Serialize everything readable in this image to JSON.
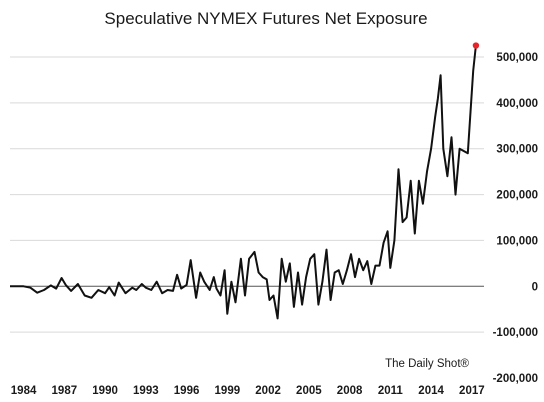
{
  "chart_data": {
    "type": "line",
    "title": "Speculative NYMEX Futures Net Exposure",
    "xlabel": "",
    "ylabel": "",
    "ylim": [
      -200000,
      550000
    ],
    "xlim": [
      1983.0,
      2017.6
    ],
    "grid": true,
    "legend": "none",
    "credit": "The Daily Shot®",
    "x_ticks": [
      1984,
      1987,
      1990,
      1993,
      1996,
      1999,
      2002,
      2005,
      2008,
      2011,
      2014,
      2017
    ],
    "x_tick_labels": [
      "1984",
      "1987",
      "1990",
      "1993",
      "1996",
      "1999",
      "2002",
      "2005",
      "2008",
      "2011",
      "2014",
      "2017"
    ],
    "y_ticks": [
      -200000,
      -100000,
      0,
      100000,
      200000,
      300000,
      400000,
      500000
    ],
    "y_tick_labels": [
      "-200,000",
      "-100,000",
      "0",
      "100,000",
      "200,000",
      "300,000",
      "400,000",
      "500,000"
    ],
    "colors": {
      "line": "#111111",
      "last_point": "#e8232a",
      "grid": "#d9d9d9"
    },
    "series": [
      {
        "x": [
          1983.0,
          1983.6,
          1984.0,
          1984.5,
          1985.0,
          1985.5,
          1986.0,
          1986.4,
          1986.8,
          1987.1,
          1987.5,
          1988.0,
          1988.5,
          1989.0,
          1989.5,
          1990.0,
          1990.3,
          1990.7,
          1991.0,
          1991.5,
          1992.0,
          1992.3,
          1992.7,
          1993.0,
          1993.4,
          1993.8,
          1994.2,
          1994.6,
          1995.0,
          1995.3,
          1995.6,
          1996.0,
          1996.3,
          1996.7,
          1997.0,
          1997.3,
          1997.7,
          1998.0,
          1998.2,
          1998.5,
          1998.8,
          1999.0,
          1999.3,
          1999.6,
          2000.0,
          2000.3,
          2000.6,
          2001.0,
          2001.3,
          2001.6,
          2001.9,
          2002.1,
          2002.4,
          2002.7,
          2003.0,
          2003.3,
          2003.6,
          2003.9,
          2004.2,
          2004.5,
          2004.8,
          2005.1,
          2005.4,
          2005.7,
          2006.0,
          2006.3,
          2006.6,
          2006.9,
          2007.2,
          2007.5,
          2007.8,
          2008.1,
          2008.4,
          2008.7,
          2009.0,
          2009.3,
          2009.6,
          2009.9,
          2010.2,
          2010.5,
          2010.8,
          2011.0,
          2011.3,
          2011.6,
          2011.9,
          2012.2,
          2012.5,
          2012.8,
          2013.1,
          2013.4,
          2013.7,
          2014.0,
          2014.3,
          2014.5,
          2014.7,
          2014.9,
          2015.2,
          2015.5,
          2015.8,
          2016.1,
          2016.4,
          2016.7,
          2016.9,
          2017.1,
          2017.3
        ],
        "values": [
          0,
          0,
          0,
          -3000,
          -14000,
          -8000,
          2000,
          -5000,
          18000,
          3000,
          -10000,
          5000,
          -20000,
          -25000,
          -8000,
          -15000,
          -2000,
          -20000,
          8000,
          -15000,
          -3000,
          -8000,
          5000,
          -3000,
          -8000,
          10000,
          -15000,
          -8000,
          -10000,
          25000,
          -5000,
          3000,
          57000,
          -25000,
          30000,
          10000,
          -8000,
          20000,
          -5000,
          -20000,
          35000,
          -60000,
          10000,
          -35000,
          60000,
          -20000,
          60000,
          75000,
          30000,
          20000,
          15000,
          -30000,
          -20000,
          -70000,
          60000,
          10000,
          50000,
          -45000,
          30000,
          -40000,
          20000,
          60000,
          70000,
          -40000,
          10000,
          80000,
          -30000,
          30000,
          35000,
          5000,
          35000,
          70000,
          20000,
          60000,
          35000,
          55000,
          5000,
          45000,
          45000,
          95000,
          120000,
          40000,
          100000,
          255000,
          140000,
          150000,
          230000,
          115000,
          230000,
          180000,
          250000,
          300000,
          370000,
          410000,
          460000,
          300000,
          240000,
          325000,
          200000,
          300000,
          295000,
          290000,
          380000,
          470000,
          525000
        ]
      }
    ]
  }
}
